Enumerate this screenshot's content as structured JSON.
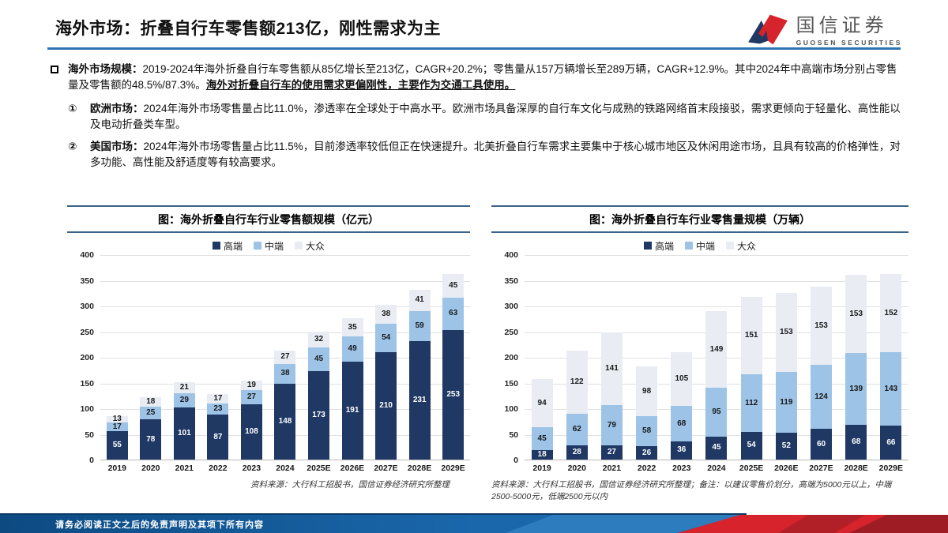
{
  "header": {
    "title": "海外市场：折叠自行车零售额213亿，刚性需求为主",
    "logo": {
      "name_cn": "国信证券",
      "name_en": "GUOSEN SECURITIES"
    }
  },
  "bullets": {
    "main": {
      "label": "海外市场规模：",
      "text": "2019-2024年海外折叠自行车零售额从85亿增长至213亿，CAGR+20.2%；零售量从157万辆增长至289万辆，CAGR+12.9%。其中2024年中高端市场分别占零售量及零售额的48.5%/87.3%。",
      "emphasis": "海外对折叠自行车的使用需求更偏刚性，主要作为交通工具使用。"
    },
    "sub": [
      {
        "num": "①",
        "label": "欧洲市场：",
        "text": "2024年海外市场零售量占比11.0%，渗透率在全球处于中高水平。欧洲市场具备深厚的自行车文化与成熟的铁路网络首末段接驳，需求更倾向于轻量化、高性能以及电动折叠类车型。"
      },
      {
        "num": "②",
        "label": "美国市场：",
        "text": "2024年海外市场零售量占比11.5%，目前渗透率较低但正在快速提升。北美折叠自行车需求主要集中于核心城市地区及休闲用途市场，且具有较高的价格弹性，对多功能、高性能及舒适度等有较高要求。"
      }
    ]
  },
  "chart_data": [
    {
      "type": "bar",
      "stacked": true,
      "title": "图：海外折叠自行车行业零售额规模（亿元）",
      "categories": [
        "2019",
        "2020",
        "2021",
        "2022",
        "2023",
        "2024",
        "2025E",
        "2026E",
        "2027E",
        "2028E",
        "2029E"
      ],
      "series": [
        {
          "name": "高端",
          "color": "#1f3864",
          "label_color": "#ffffff",
          "values": [
            55,
            78,
            101,
            87,
            108,
            148,
            173,
            191,
            210,
            231,
            253
          ]
        },
        {
          "name": "中端",
          "color": "#9dc3e6",
          "label_color": "#1a1a1a",
          "values": [
            17,
            25,
            29,
            23,
            27,
            38,
            45,
            49,
            54,
            59,
            63
          ]
        },
        {
          "name": "大众",
          "color": "#e9edf3",
          "label_color": "#1a1a1a",
          "values": [
            13,
            18,
            21,
            17,
            19,
            27,
            32,
            35,
            38,
            41,
            45
          ]
        }
      ],
      "ylim": [
        0,
        400
      ],
      "ytick_step": 50,
      "grid": true,
      "legend_position": "top",
      "source": "资料来源：大行科工招股书，国信证券经济研究所整理"
    },
    {
      "type": "bar",
      "stacked": true,
      "title": "图：海外折叠自行车行业零售量规模（万辆）",
      "categories": [
        "2019",
        "2020",
        "2021",
        "2022",
        "2023",
        "2024",
        "2025E",
        "2026E",
        "2027E",
        "2028E",
        "2029E"
      ],
      "series": [
        {
          "name": "高端",
          "color": "#1f3864",
          "label_color": "#ffffff",
          "values": [
            18,
            28,
            27,
            26,
            36,
            45,
            54,
            52,
            60,
            68,
            66
          ]
        },
        {
          "name": "中端",
          "color": "#9dc3e6",
          "label_color": "#1a1a1a",
          "values": [
            45,
            62,
            79,
            58,
            68,
            95,
            112,
            119,
            124,
            139,
            143
          ]
        },
        {
          "name": "大众",
          "color": "#e9edf3",
          "label_color": "#1a1a1a",
          "values": [
            94,
            122,
            141,
            98,
            105,
            149,
            151,
            153,
            153,
            153,
            152
          ]
        }
      ],
      "ylim": [
        0,
        400
      ],
      "ytick_step": 50,
      "grid": true,
      "legend_position": "top",
      "source": "资料来源：大行科工招股书，国信证券经济研究所整理；备注：以建议零售价划分，高端为5000元以上，中端2500-5000元，低端2500元以内"
    }
  ],
  "footer": {
    "disclaimer": "请务必阅读正文之后的免责声明及其项下所有内容"
  }
}
